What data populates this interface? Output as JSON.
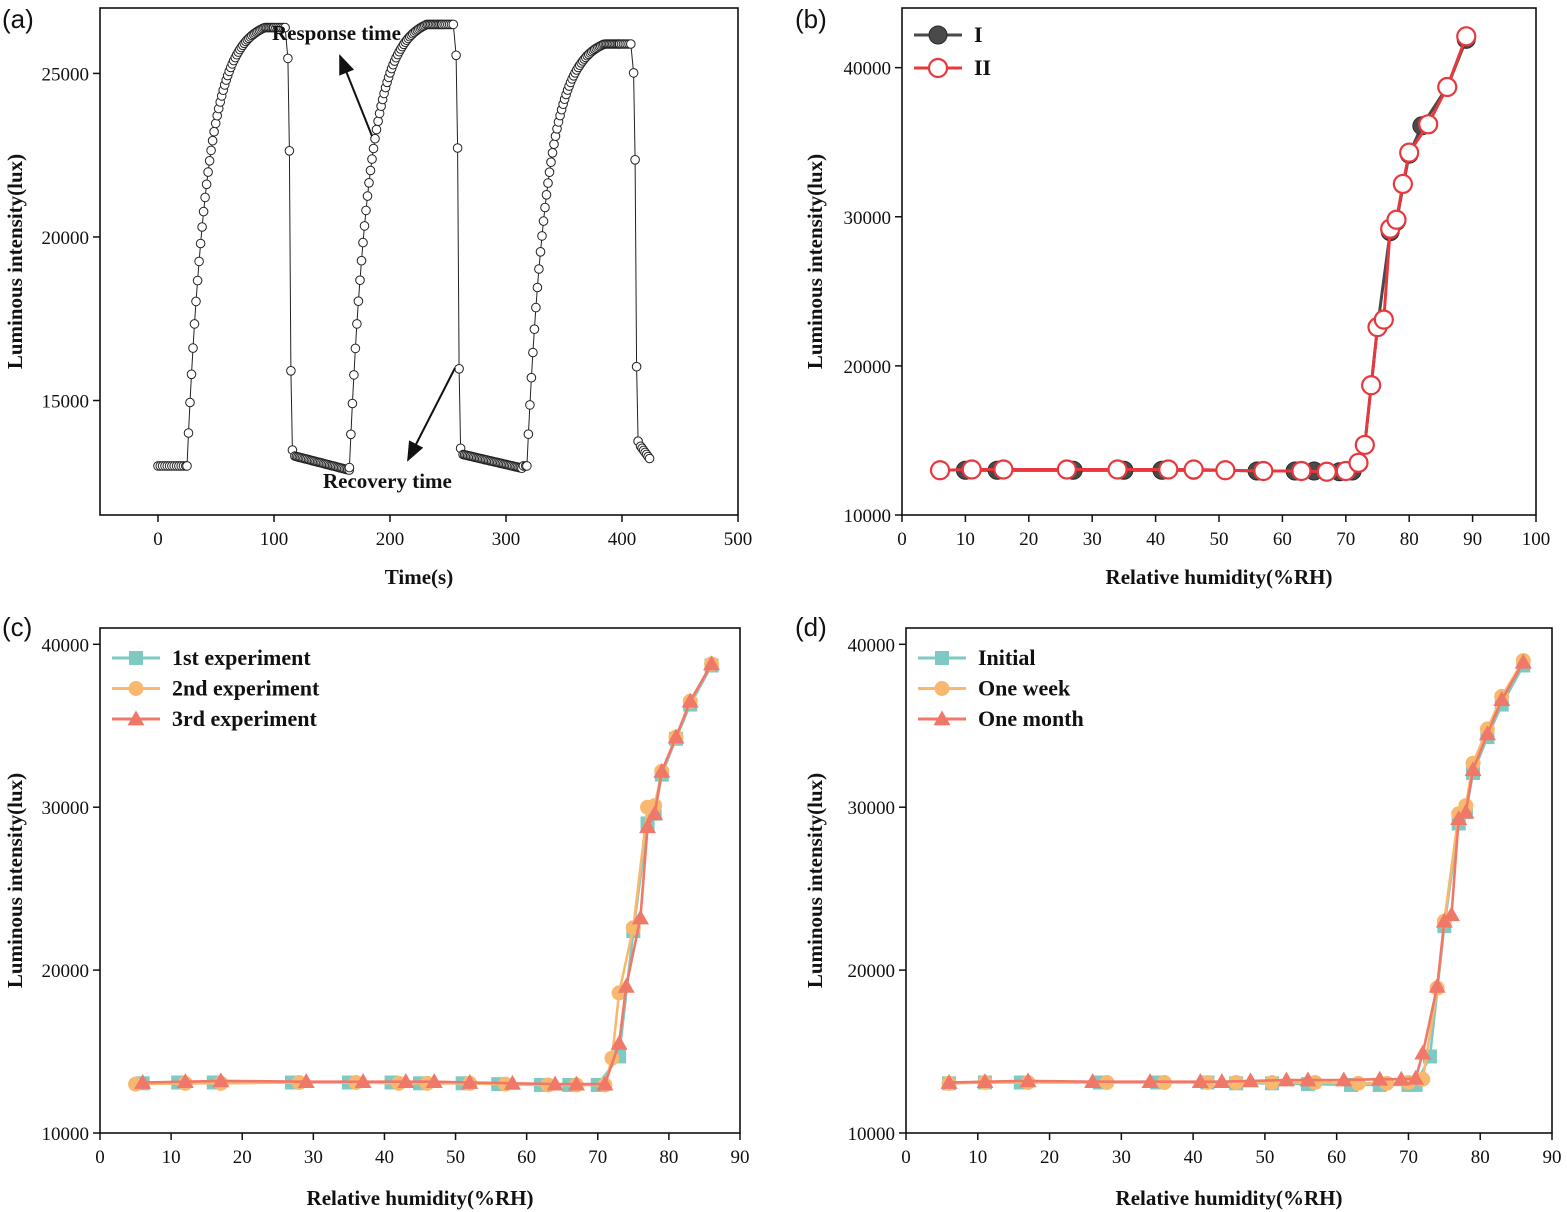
{
  "colors": {
    "axis": "#111111",
    "teal": "#7ecac2",
    "orange": "#f8b96e",
    "salmon": "#f07868",
    "dark_gray": "#4a4a4a",
    "red": "#e8383d"
  },
  "chart_data": [
    {
      "panel_label": "(a)",
      "type": "scatter",
      "xlabel": "Time(s)",
      "ylabel": "Luminous intensity(lux)",
      "xlim": [
        -50,
        500
      ],
      "ylim": [
        11500,
        27000
      ],
      "xticks": [
        0,
        100,
        200,
        300,
        400,
        500
      ],
      "yticks": [
        15000,
        20000,
        25000
      ],
      "series": [
        {
          "marker": "hollow-circle",
          "segments": [
            {
              "start": 0,
              "base_end": 25,
              "rise_end": 110,
              "fall_end": 165,
              "low": 13000,
              "high": 26400,
              "low_end": 12950
            },
            {
              "start": 165,
              "base_end": 165,
              "rise_end": 255,
              "fall_end": 315,
              "low": 12950,
              "high": 26500,
              "low_end": 13000
            },
            {
              "start": 315,
              "base_end": 318,
              "rise_end": 408,
              "fall_end": 425,
              "low": 13000,
              "high": 25900,
              "low_end": 13250
            }
          ]
        }
      ],
      "annotations": [
        {
          "text": "Response time"
        },
        {
          "text": "Recovery time"
        }
      ]
    },
    {
      "panel_label": "(b)",
      "type": "line",
      "xlabel": "Relative humidity(%RH)",
      "ylabel": "Luminous intensity(lux)",
      "xlim": [
        0,
        100
      ],
      "ylim": [
        10000,
        44000
      ],
      "xticks": [
        0,
        10,
        20,
        30,
        40,
        50,
        60,
        70,
        80,
        90,
        100
      ],
      "yticks": [
        10000,
        20000,
        30000,
        40000
      ],
      "legend_position": "top-left",
      "series": [
        {
          "name": "I",
          "marker": "filled-circle",
          "color": "#4a4a4a",
          "x": [
            10,
            15,
            27,
            35,
            41,
            46,
            51,
            56,
            62,
            65,
            69,
            71,
            73,
            75,
            77,
            78,
            80,
            82,
            86,
            89
          ],
          "y": [
            13000,
            13000,
            13000,
            13000,
            13000,
            13000,
            13000,
            12950,
            12950,
            12950,
            12900,
            12950,
            14700,
            22600,
            29000,
            29700,
            34200,
            36100,
            38700,
            41900
          ]
        },
        {
          "name": "II",
          "marker": "hollow-circle",
          "color": "#e8383d",
          "x": [
            6,
            11,
            16,
            26,
            34,
            42,
            46,
            51,
            57,
            63,
            67,
            70,
            72,
            73,
            74,
            75,
            76,
            77,
            78,
            79,
            80,
            83,
            86,
            89
          ],
          "y": [
            13000,
            13050,
            13050,
            13050,
            13050,
            13050,
            13050,
            13000,
            12950,
            12950,
            12900,
            12950,
            13500,
            14700,
            18700,
            22600,
            23100,
            29200,
            29800,
            32200,
            34300,
            36200,
            38700,
            42100
          ]
        }
      ]
    },
    {
      "panel_label": "(c)",
      "type": "line",
      "xlabel": "Relative humidity(%RH)",
      "ylabel": "Luminous intensity(lux)",
      "xlim": [
        0,
        90
      ],
      "ylim": [
        10000,
        41000
      ],
      "xticks": [
        0,
        10,
        20,
        30,
        40,
        50,
        60,
        70,
        80,
        90
      ],
      "yticks": [
        10000,
        20000,
        30000,
        40000
      ],
      "legend_position": "top-left",
      "series": [
        {
          "name": "1st experiment",
          "marker": "square",
          "color": "#7ecac2",
          "x": [
            6,
            11,
            16,
            27,
            35,
            41,
            45,
            51,
            56,
            62,
            66,
            70,
            73,
            75,
            77,
            78,
            79,
            81,
            83,
            86
          ],
          "y": [
            13050,
            13100,
            13100,
            13100,
            13100,
            13100,
            13050,
            13050,
            13000,
            12950,
            12950,
            12950,
            14700,
            22400,
            29000,
            29600,
            32000,
            34200,
            36300,
            38700
          ]
        },
        {
          "name": "2nd experiment",
          "marker": "circle",
          "color": "#f8b96e",
          "x": [
            5,
            12,
            17,
            28,
            36,
            42,
            46,
            52,
            57,
            63,
            67,
            71,
            72,
            73,
            75,
            77,
            78,
            79,
            81,
            83,
            86
          ],
          "y": [
            13000,
            13050,
            13050,
            13100,
            13100,
            13050,
            13050,
            13050,
            13000,
            12950,
            12950,
            12950,
            14600,
            18600,
            22600,
            30000,
            30100,
            32200,
            34300,
            36500,
            38800
          ]
        },
        {
          "name": "3rd experiment",
          "marker": "triangle",
          "color": "#f07868",
          "x": [
            6,
            12,
            17,
            29,
            37,
            43,
            47,
            52,
            58,
            64,
            67,
            71,
            73,
            74,
            76,
            77,
            78,
            79,
            81,
            83,
            86
          ],
          "y": [
            13100,
            13150,
            13200,
            13150,
            13150,
            13150,
            13150,
            13100,
            13050,
            13000,
            13000,
            13000,
            15500,
            19000,
            23200,
            28800,
            29600,
            32200,
            34300,
            36500,
            38800
          ]
        }
      ]
    },
    {
      "panel_label": "(d)",
      "type": "line",
      "xlabel": "Relative humidity(%RH)",
      "ylabel": "Luminous intensity(lux)",
      "xlim": [
        0,
        90
      ],
      "ylim": [
        10000,
        41000
      ],
      "xticks": [
        0,
        10,
        20,
        30,
        40,
        50,
        60,
        70,
        80,
        90
      ],
      "yticks": [
        10000,
        20000,
        30000,
        40000
      ],
      "legend_position": "top-left",
      "series": [
        {
          "name": "Initial",
          "marker": "square",
          "color": "#7ecac2",
          "x": [
            6,
            11,
            16,
            27,
            35,
            42,
            46,
            51,
            56,
            62,
            66,
            70,
            71,
            73,
            75,
            77,
            78,
            79,
            81,
            83,
            86
          ],
          "y": [
            13050,
            13100,
            13100,
            13100,
            13100,
            13100,
            13050,
            13050,
            13000,
            12950,
            12950,
            12950,
            12950,
            14700,
            22700,
            29000,
            29700,
            32100,
            34300,
            36300,
            38700
          ]
        },
        {
          "name": "One week",
          "marker": "circle",
          "color": "#f8b96e",
          "x": [
            6,
            11,
            17,
            28,
            36,
            42,
            46,
            51,
            57,
            63,
            67,
            70,
            72,
            74,
            75,
            77,
            78,
            79,
            81,
            83,
            86
          ],
          "y": [
            13050,
            13100,
            13100,
            13100,
            13100,
            13100,
            13100,
            13100,
            13100,
            13050,
            13050,
            13100,
            13300,
            18900,
            23000,
            29600,
            30100,
            32700,
            34800,
            36800,
            39000
          ]
        },
        {
          "name": "One month",
          "marker": "triangle",
          "color": "#f07868",
          "x": [
            6,
            11,
            17,
            26,
            34,
            41,
            44,
            48,
            53,
            56,
            61,
            66,
            69,
            71,
            72,
            74,
            75,
            76,
            77,
            78,
            79,
            81,
            83,
            86
          ],
          "y": [
            13100,
            13150,
            13200,
            13150,
            13150,
            13150,
            13150,
            13200,
            13250,
            13250,
            13250,
            13300,
            13300,
            13350,
            14900,
            19000,
            23000,
            23400,
            29300,
            29700,
            32300,
            34500,
            36600,
            38900
          ]
        }
      ]
    }
  ]
}
